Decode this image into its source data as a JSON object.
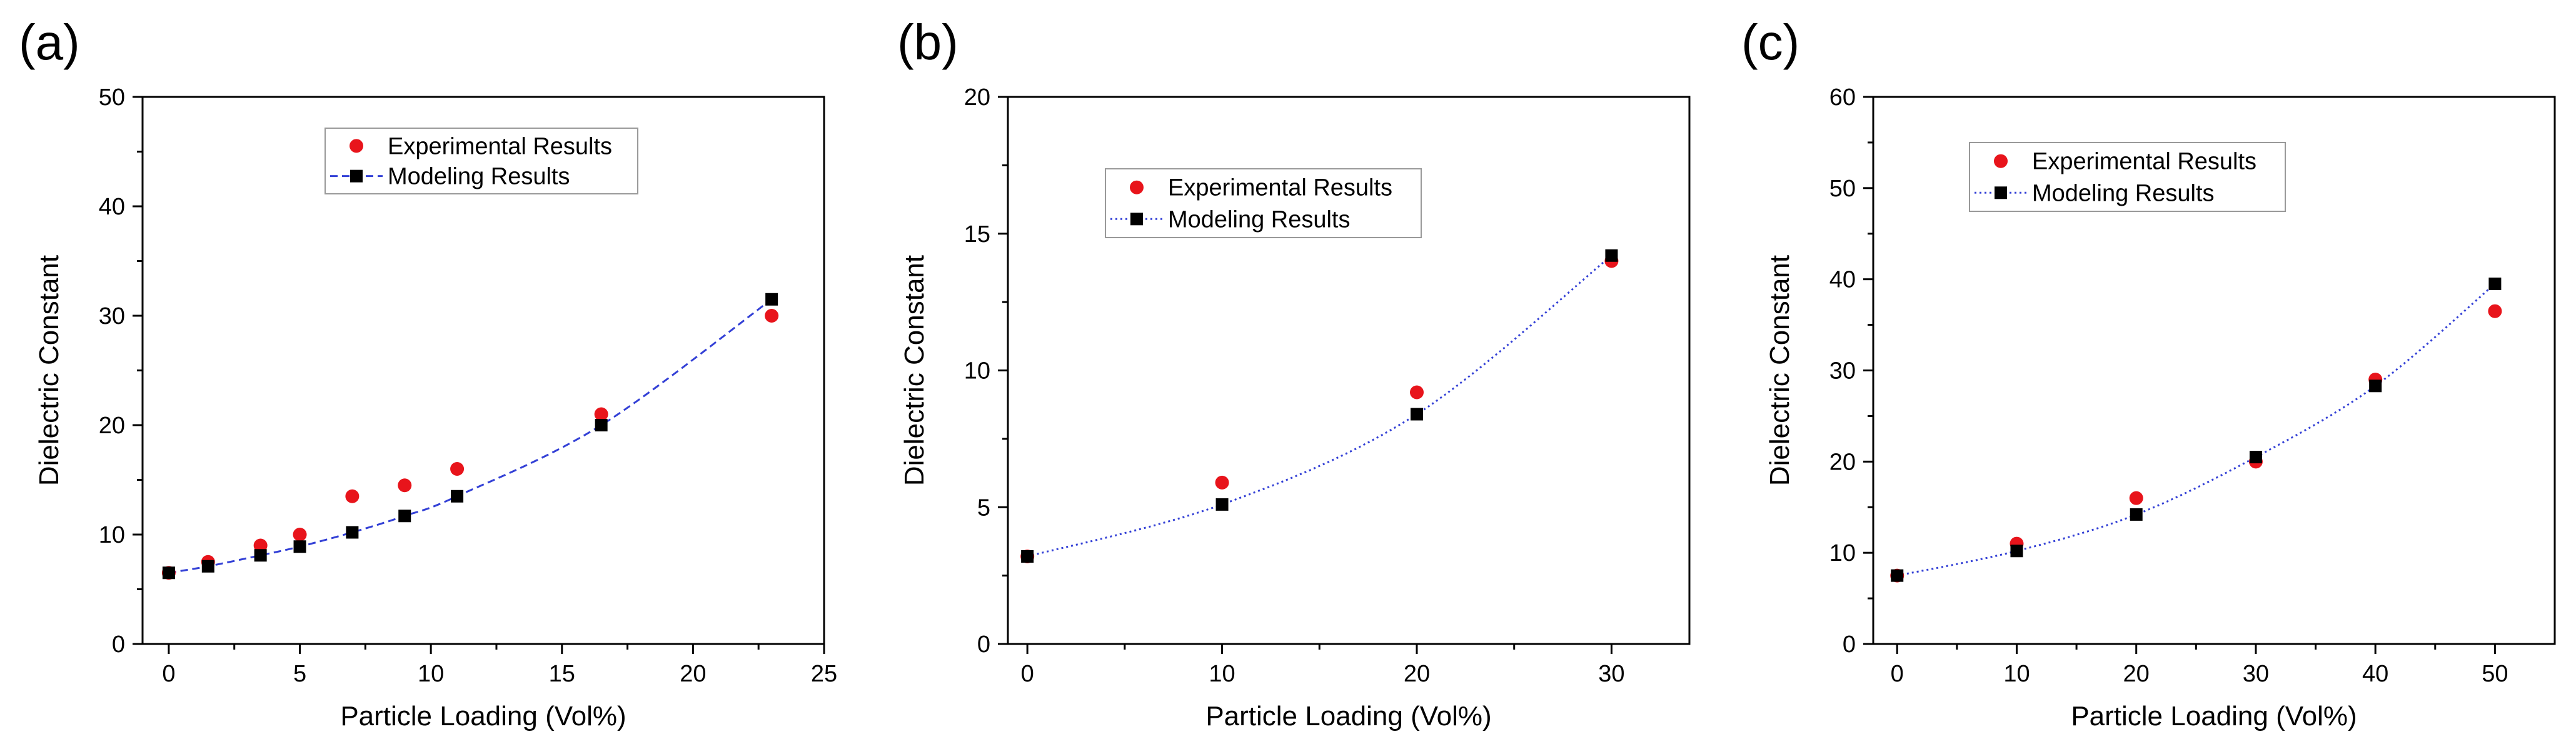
{
  "colors": {
    "experimental": "#e8141b",
    "modeling_marker": "#000000",
    "modeling_line": "#3340d6",
    "axis": "#000000"
  },
  "chart_data": [
    {
      "panel_label": "(a)",
      "type": "scatter",
      "xlabel": "Particle Loading (Vol%)",
      "ylabel": "Dielectric Constant",
      "xlim": [
        -1,
        25
      ],
      "ylim": [
        0,
        50
      ],
      "xticks": [
        0,
        5,
        10,
        15,
        20,
        25
      ],
      "yticks": [
        0,
        10,
        20,
        30,
        40,
        50
      ],
      "legend_position": "top-center",
      "series": [
        {
          "name": "Experimental Results",
          "marker": "circle",
          "x": [
            0,
            1.5,
            3.5,
            5,
            7,
            9,
            11,
            16.5,
            23
          ],
          "y": [
            6.5,
            7.5,
            9,
            10,
            13.5,
            14.5,
            16,
            21,
            30
          ]
        },
        {
          "name": "Modeling Results",
          "marker": "square",
          "line": "dashed",
          "x": [
            0,
            1.5,
            3.5,
            5,
            7,
            9,
            11,
            16.5,
            23
          ],
          "y": [
            6.5,
            7.1,
            8.1,
            8.9,
            10.2,
            11.7,
            13.5,
            20,
            31.5
          ]
        }
      ]
    },
    {
      "panel_label": "(b)",
      "type": "scatter",
      "xlabel": "Particle Loading (Vol%)",
      "ylabel": "Dielectric Constant",
      "xlim": [
        -1,
        34
      ],
      "ylim": [
        0,
        20
      ],
      "xticks": [
        0,
        10,
        20,
        30
      ],
      "yticks": [
        0,
        5,
        10,
        15,
        20
      ],
      "legend_position": "top-left",
      "series": [
        {
          "name": "Experimental Results",
          "marker": "circle",
          "x": [
            0,
            10,
            20,
            30
          ],
          "y": [
            3.2,
            5.9,
            9.2,
            14.0
          ]
        },
        {
          "name": "Modeling Results",
          "marker": "square",
          "line": "dotted",
          "x": [
            0,
            10,
            20,
            30
          ],
          "y": [
            3.2,
            5.1,
            8.4,
            14.2
          ]
        }
      ]
    },
    {
      "panel_label": "(c)",
      "type": "scatter",
      "xlabel": "Particle Loading (Vol%)",
      "ylabel": "Dielectric Constant",
      "xlim": [
        -2,
        55
      ],
      "ylim": [
        0,
        60
      ],
      "xticks": [
        0,
        10,
        20,
        30,
        40,
        50
      ],
      "yticks": [
        0,
        10,
        20,
        30,
        40,
        50,
        60
      ],
      "legend_position": "top-left",
      "series": [
        {
          "name": "Experimental Results",
          "marker": "circle",
          "x": [
            0,
            10,
            20,
            30,
            40,
            50
          ],
          "y": [
            7.5,
            11,
            16,
            20,
            29,
            36.5
          ]
        },
        {
          "name": "Modeling Results",
          "marker": "square",
          "line": "dotted",
          "x": [
            0,
            10,
            20,
            30,
            40,
            50
          ],
          "y": [
            7.5,
            10.2,
            14.2,
            20.5,
            28.3,
            39.5
          ]
        }
      ]
    }
  ]
}
